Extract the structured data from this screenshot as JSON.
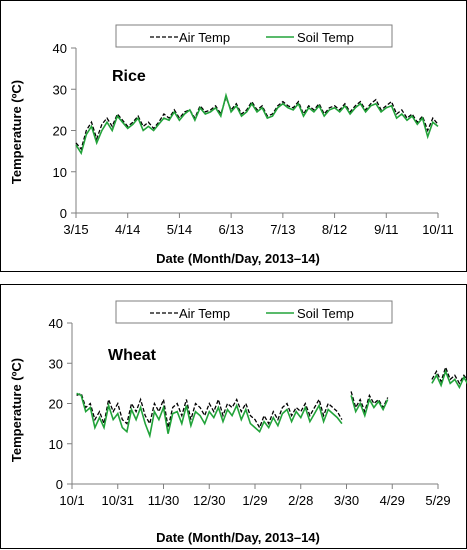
{
  "chart_data": [
    {
      "type": "line",
      "title": "Rice",
      "xlabel": "Date (Month/Day, 2013–14)",
      "ylabel": "Temperature (ºC)",
      "ylim": [
        0,
        40
      ],
      "yticks": [
        0,
        10,
        20,
        30,
        40
      ],
      "xlim": [
        0,
        210
      ],
      "xticks": [
        {
          "x": 0,
          "label": "3/15"
        },
        {
          "x": 30,
          "label": "4/14"
        },
        {
          "x": 60,
          "label": "5/14"
        },
        {
          "x": 90,
          "label": "6/13"
        },
        {
          "x": 120,
          "label": "7/13"
        },
        {
          "x": 150,
          "label": "8/12"
        },
        {
          "x": 180,
          "label": "9/11"
        },
        {
          "x": 210,
          "label": "10/11"
        }
      ],
      "legend": {
        "position": "top",
        "entries": [
          "Air Temp",
          "Soil Temp"
        ]
      },
      "series": [
        {
          "name": "Air Temp",
          "x": [
            0,
            3,
            6,
            9,
            12,
            15,
            18,
            21,
            24,
            27,
            30,
            33,
            36,
            39,
            42,
            45,
            48,
            51,
            54,
            57,
            60,
            63,
            66,
            69,
            72,
            75,
            78,
            81,
            84,
            87,
            90,
            93,
            96,
            99,
            102,
            105,
            108,
            111,
            114,
            117,
            120,
            123,
            126,
            129,
            132,
            135,
            138,
            141,
            144,
            147,
            150,
            153,
            156,
            159,
            162,
            165,
            168,
            171,
            174,
            177,
            180,
            183,
            186,
            189,
            192,
            195,
            198,
            201,
            204,
            207,
            210
          ],
          "y": [
            17,
            15.5,
            20,
            22,
            18,
            21.5,
            23,
            21,
            24,
            22.5,
            21,
            22,
            23.5,
            21,
            22,
            20.5,
            22,
            24,
            23,
            25,
            23,
            24.5,
            25,
            23,
            26,
            24.5,
            25,
            26,
            24,
            28,
            25,
            26.5,
            24,
            25,
            27,
            25,
            26,
            23.5,
            24,
            26,
            27,
            26,
            25.5,
            27,
            24,
            26,
            25,
            26.5,
            24,
            25.5,
            26,
            25,
            26.5,
            24.5,
            26,
            27,
            25,
            26.5,
            27.5,
            25,
            26,
            27,
            24,
            25,
            23,
            24,
            22,
            23.5,
            20,
            23,
            21.5
          ]
        },
        {
          "name": "Soil Temp",
          "x": [
            0,
            3,
            6,
            9,
            12,
            15,
            18,
            21,
            24,
            27,
            30,
            33,
            36,
            39,
            42,
            45,
            48,
            51,
            54,
            57,
            60,
            63,
            66,
            69,
            72,
            75,
            78,
            81,
            84,
            87,
            90,
            93,
            96,
            99,
            102,
            105,
            108,
            111,
            114,
            117,
            120,
            123,
            126,
            129,
            132,
            135,
            138,
            141,
            144,
            147,
            150,
            153,
            156,
            159,
            162,
            165,
            168,
            171,
            174,
            177,
            180,
            183,
            186,
            189,
            192,
            195,
            198,
            201,
            204,
            207,
            210
          ],
          "y": [
            16.5,
            14.5,
            19,
            21,
            17,
            20,
            22,
            20,
            23.5,
            22,
            20.5,
            21.5,
            23,
            20,
            21,
            20,
            21.5,
            23,
            22.5,
            24.5,
            22.5,
            24,
            25,
            22.5,
            25.5,
            24,
            24.5,
            25.5,
            23.5,
            28.5,
            24.5,
            26,
            23.5,
            24.5,
            26.5,
            24.5,
            25.5,
            23,
            23.5,
            25.5,
            26.5,
            25.5,
            25,
            26.5,
            23.5,
            25.5,
            24.5,
            26,
            23.5,
            25,
            25.5,
            24.5,
            26,
            24,
            25.5,
            26.5,
            24.5,
            26,
            26.5,
            24.5,
            25.5,
            26,
            23,
            24,
            22.5,
            23.5,
            21.5,
            23,
            18.5,
            22,
            21
          ]
        }
      ]
    },
    {
      "type": "line",
      "title": "Wheat",
      "xlabel": "Date (Month/Day, 2013–14)",
      "ylabel": "Temperature (ºC)",
      "ylim": [
        0,
        40
      ],
      "yticks": [
        0,
        10,
        20,
        30,
        40
      ],
      "xlim": [
        0,
        240
      ],
      "xticks": [
        {
          "x": 0,
          "label": "10/1"
        },
        {
          "x": 30,
          "label": "10/31"
        },
        {
          "x": 60,
          "label": "11/30"
        },
        {
          "x": 90,
          "label": "12/30"
        },
        {
          "x": 120,
          "label": "1/29"
        },
        {
          "x": 150,
          "label": "2/28"
        },
        {
          "x": 180,
          "label": "3/30"
        },
        {
          "x": 210,
          "label": "4/29"
        },
        {
          "x": 240,
          "label": "5/29"
        }
      ],
      "legend": {
        "position": "top",
        "entries": [
          "Air Temp",
          "Soil Temp"
        ]
      },
      "series": [
        {
          "name": "Air Temp",
          "segments": [
            {
              "x": [
                3,
                6,
                9,
                12,
                15,
                18,
                21,
                24,
                27,
                30,
                33,
                36,
                39,
                42,
                45,
                48,
                51,
                54,
                57,
                60,
                63,
                66,
                69,
                72,
                75,
                78,
                81,
                84,
                87,
                90,
                93,
                96,
                99,
                102,
                105,
                108,
                111,
                114,
                117,
                120,
                123,
                126,
                129,
                132,
                135,
                138,
                141,
                144,
                147,
                150,
                153,
                156,
                159,
                162,
                165,
                168,
                171,
                174,
                177
              ],
              "y": [
                22,
                22.5,
                19,
                20,
                16,
                18,
                15,
                21,
                18,
                20,
                16,
                15,
                20,
                18,
                21,
                17,
                15,
                20,
                18,
                21,
                14,
                19,
                20,
                17,
                21,
                16,
                20,
                19,
                17,
                20,
                18,
                21,
                17,
                20,
                19,
                21,
                18,
                20,
                17,
                16,
                14,
                17,
                15,
                18,
                16,
                19,
                20,
                17,
                19,
                18,
                20,
                17,
                19,
                21,
                17,
                20,
                19,
                18,
                16
              ]
            },
            {
              "x": [
                183,
                186,
                189,
                192,
                195,
                198,
                201,
                204,
                207
              ],
              "y": [
                23,
                19,
                21,
                18,
                22,
                20,
                21,
                19,
                21.5
              ]
            },
            {
              "x": [
                236,
                239,
                242,
                245,
                248,
                251,
                254,
                257,
                260,
                263
              ],
              "y": [
                26,
                28,
                25.5,
                29,
                26,
                27,
                25,
                27,
                25.5,
                24.5
              ]
            }
          ]
        },
        {
          "name": "Soil Temp",
          "segments": [
            {
              "x": [
                3,
                6,
                9,
                12,
                15,
                18,
                21,
                24,
                27,
                30,
                33,
                36,
                39,
                42,
                45,
                48,
                51,
                54,
                57,
                60,
                63,
                66,
                69,
                72,
                75,
                78,
                81,
                84,
                87,
                90,
                93,
                96,
                99,
                102,
                105,
                108,
                111,
                114,
                117,
                120,
                123,
                126,
                129,
                132,
                135,
                138,
                141,
                144,
                147,
                150,
                153,
                156,
                159,
                162,
                165,
                168,
                171,
                174,
                177
              ],
              "y": [
                22.5,
                22,
                18,
                19,
                14,
                16.5,
                14,
                19.5,
                16,
                17.5,
                14,
                13,
                18.5,
                16,
                19,
                15,
                12,
                18,
                16,
                19,
                12.5,
                17.5,
                18,
                15,
                19.5,
                14.5,
                18,
                17,
                15,
                18,
                16.5,
                19,
                15.5,
                18.5,
                17,
                19.5,
                16,
                18.5,
                15,
                14,
                13,
                15.5,
                14,
                16.5,
                14.5,
                17.5,
                18.5,
                15.5,
                18,
                16.5,
                19,
                15.5,
                17.5,
                19.5,
                15.5,
                18.5,
                17.5,
                16.5,
                15
              ]
            },
            {
              "x": [
                183,
                186,
                189,
                192,
                195,
                198,
                201,
                204,
                207
              ],
              "y": [
                22,
                18,
                20,
                17,
                21,
                19,
                20.5,
                18.5,
                21
              ]
            },
            {
              "x": [
                236,
                239,
                242,
                245,
                248,
                251,
                254,
                257,
                260,
                263
              ],
              "y": [
                25,
                27,
                24.5,
                28,
                25,
                26,
                24,
                26.5,
                24.5,
                24
              ]
            }
          ]
        }
      ]
    }
  ]
}
